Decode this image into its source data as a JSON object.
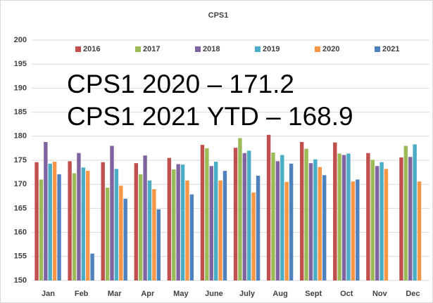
{
  "chart_data": {
    "type": "bar",
    "title": "CPS1",
    "annotations": [
      "CPS1 2020 – 171.2",
      "CPS1 2021 YTD – 168.9"
    ],
    "categories": [
      "Jan",
      "Feb",
      "Mar",
      "Apr",
      "May",
      "June",
      "July",
      "Aug",
      "Sept",
      "Oct",
      "Nov",
      "Dec"
    ],
    "series": [
      {
        "name": "2016",
        "color": "#c0504d",
        "values": [
          174.6,
          174.8,
          174.6,
          174.4,
          175.5,
          178.2,
          177.6,
          180.3,
          178.8,
          178.7,
          176.5,
          175.6
        ]
      },
      {
        "name": "2017",
        "color": "#9bbb59",
        "values": [
          171.0,
          172.3,
          169.3,
          172.1,
          173.1,
          177.5,
          179.6,
          176.6,
          177.4,
          176.4,
          175.1,
          178.0
        ]
      },
      {
        "name": "2018",
        "color": "#8064a2",
        "values": [
          178.8,
          176.5,
          178.0,
          176.0,
          174.2,
          173.8,
          176.5,
          174.8,
          174.4,
          176.1,
          173.8,
          175.7
        ]
      },
      {
        "name": "2019",
        "color": "#4bacc6",
        "values": [
          174.3,
          173.5,
          173.2,
          170.8,
          174.1,
          174.7,
          177.0,
          176.1,
          175.2,
          176.4,
          174.6,
          178.3
        ]
      },
      {
        "name": "2020",
        "color": "#f79646",
        "values": [
          174.7,
          172.8,
          169.7,
          169.0,
          170.8,
          170.8,
          168.3,
          170.5,
          173.6,
          170.6,
          173.2,
          170.6
        ]
      },
      {
        "name": "2021",
        "color": "#4f81bd",
        "values": [
          172.1,
          155.6,
          167.0,
          164.8,
          167.9,
          172.8,
          171.8,
          174.3,
          171.9,
          171.0,
          null,
          null
        ]
      }
    ],
    "ylim": [
      150,
      200
    ],
    "yticks": [
      150,
      155,
      160,
      165,
      170,
      175,
      180,
      185,
      190,
      195,
      200
    ],
    "grid": true,
    "legend": "top"
  }
}
